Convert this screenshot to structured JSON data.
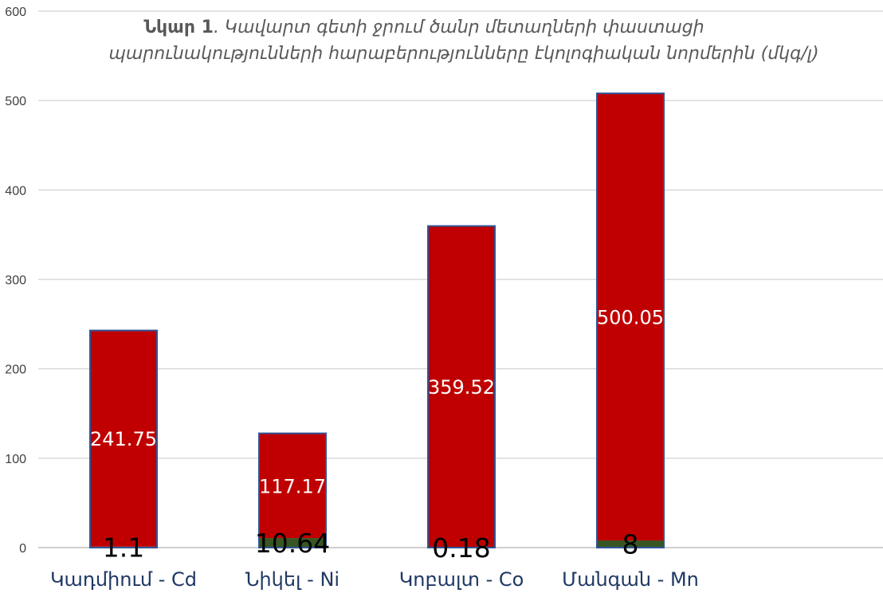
{
  "chart_data": {
    "type": "bar",
    "stacked": true,
    "title_prefix": "Նկար 1",
    "title_line1_rest": ".  Կավարտ գետի ջրում ծանր մետաղների փաստացի",
    "title_line2": "պարունակությունների հարաբերությունները էկոլոգիական նորմերին (մկգ/լ)",
    "categories": [
      "Կադմիում - Cd",
      "Նիկել - Ni",
      "Կոբալտ - Co",
      "Մանգան - Mn"
    ],
    "series": [
      {
        "values": [
          1.1,
          10.64,
          0.18,
          8
        ],
        "labels": [
          "1.1",
          "10.64",
          "0.18",
          "8"
        ],
        "color": "#375623"
      },
      {
        "values": [
          241.75,
          117.17,
          359.52,
          500.05
        ],
        "labels": [
          "241.75",
          "117.17",
          "359.52",
          "500.05"
        ],
        "color": "#c00000"
      }
    ],
    "ylim": [
      0,
      600
    ],
    "yticks": [
      0,
      100,
      200,
      300,
      400,
      500,
      600
    ],
    "grid": true,
    "bar_outline_color": "#2f5597",
    "grid_color": "#d9d9d9",
    "axis_color": "#bfbfbf"
  }
}
